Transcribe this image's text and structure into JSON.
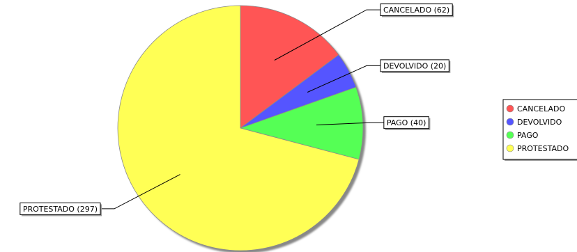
{
  "chart_data": {
    "type": "pie",
    "title": "",
    "start_angle_deg": 90,
    "direction": "clockwise",
    "legend_position": "right",
    "slices": [
      {
        "label": "CANCELADO",
        "value": 62,
        "color": "#ff5555",
        "display": "CANCELADO (62)"
      },
      {
        "label": "DEVOLVIDO",
        "value": 20,
        "color": "#5555ff",
        "display": "DEVOLVIDO (20)"
      },
      {
        "label": "PAGO",
        "value": 40,
        "color": "#55ff55",
        "display": "PAGO (40)"
      },
      {
        "label": "PROTESTADO",
        "value": 297,
        "color": "#ffff55",
        "display": "PROTESTADO (297)"
      }
    ]
  }
}
